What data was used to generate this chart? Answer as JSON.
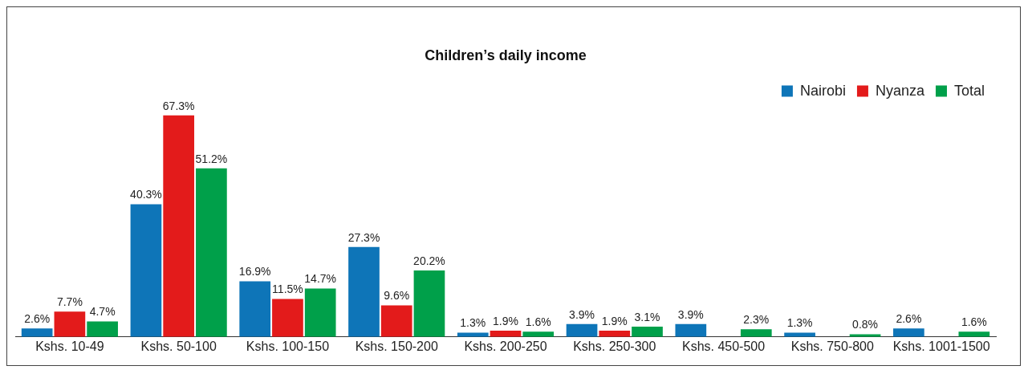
{
  "chart_data": {
    "type": "bar",
    "title": "Children’s daily income",
    "categories": [
      "Kshs. 10-49",
      "Kshs. 50-100",
      "Kshs. 100-150",
      "Kshs. 150-200",
      "Kshs. 200-250",
      "Kshs. 250-300",
      "Kshs. 450-500",
      "Kshs. 750-800",
      "Kshs. 1001-1500"
    ],
    "series": [
      {
        "name": "Nairobi",
        "color": "#0e75b8",
        "values": [
          2.6,
          40.3,
          16.9,
          27.3,
          1.3,
          3.9,
          3.9,
          1.3,
          2.6
        ],
        "value_labels": [
          "2.6%",
          "40.3%",
          "16.9%",
          "27.3%",
          "1.3%",
          "3.9%",
          "3.9%",
          "1.3%",
          "2.6%"
        ]
      },
      {
        "name": "Nyanza",
        "color": "#e31b1b",
        "values": [
          7.7,
          67.3,
          11.5,
          9.6,
          1.9,
          1.9,
          null,
          null,
          null
        ],
        "value_labels": [
          "7.7%",
          "67.3%",
          "11.5%",
          "9.6%",
          "1.9%",
          "1.9%",
          null,
          null,
          null
        ]
      },
      {
        "name": "Total",
        "color": "#00a04a",
        "values": [
          4.7,
          51.2,
          14.7,
          20.2,
          1.6,
          3.1,
          2.3,
          0.8,
          1.6
        ],
        "value_labels": [
          "4.7%",
          "51.2%",
          "14.7%",
          "20.2%",
          "1.6%",
          "3.1%",
          "2.3%",
          "0.8%",
          "1.6%"
        ]
      }
    ],
    "legend": "top right",
    "grid": false
  }
}
